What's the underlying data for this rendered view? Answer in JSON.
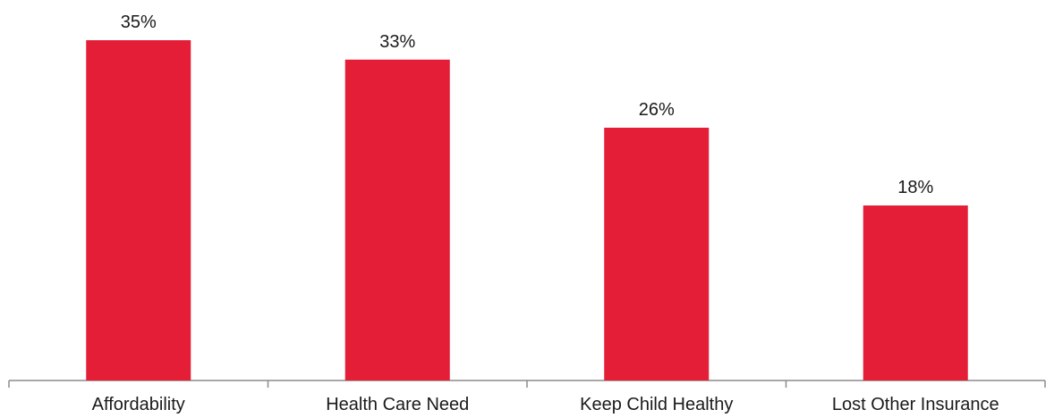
{
  "chart_data": {
    "type": "bar",
    "title": "",
    "xlabel": "",
    "ylabel": "",
    "categories": [
      "Affordability",
      "Health Care Need",
      "Keep Child Healthy",
      "Lost Other Insurance"
    ],
    "values": [
      35,
      33,
      26,
      18
    ],
    "data_labels": [
      "35%",
      "33%",
      "26%",
      "18%"
    ],
    "ylim": [
      0,
      35
    ],
    "grid": false,
    "legend": "none",
    "bar_color": "#E31E36",
    "axis_color": "#8C8C8C"
  }
}
